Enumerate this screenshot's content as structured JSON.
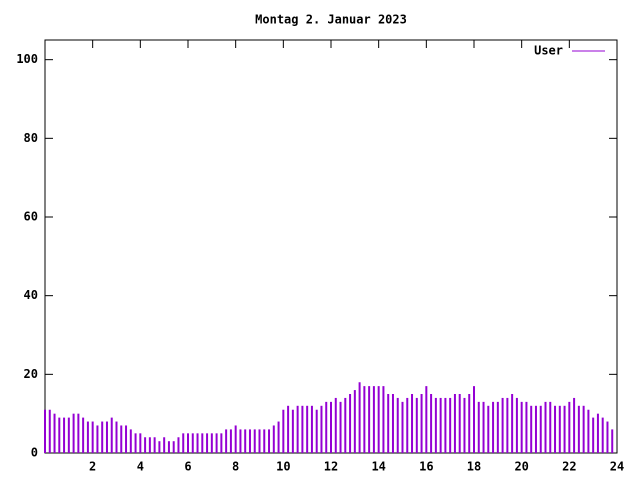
{
  "chart_data": {
    "type": "impulse",
    "title": "Montag 2. Januar 2023",
    "x": [
      0,
      0.2,
      0.4,
      0.6,
      0.8,
      1,
      1.2,
      1.4,
      1.6,
      1.8,
      2,
      2.2,
      2.4,
      2.6,
      2.8,
      3,
      3.2,
      3.4,
      3.6,
      3.8,
      4,
      4.2,
      4.4,
      4.6,
      4.8,
      5,
      5.2,
      5.4,
      5.6,
      5.8,
      6,
      6.2,
      6.4,
      6.6,
      6.8,
      7,
      7.2,
      7.4,
      7.6,
      7.8,
      8,
      8.2,
      8.4,
      8.6,
      8.8,
      9,
      9.2,
      9.4,
      9.6,
      9.8,
      10,
      10.2,
      10.4,
      10.6,
      10.8,
      11,
      11.2,
      11.4,
      11.6,
      11.8,
      12,
      12.2,
      12.4,
      12.6,
      12.8,
      13,
      13.2,
      13.4,
      13.6,
      13.8,
      14,
      14.2,
      14.4,
      14.6,
      14.8,
      15,
      15.2,
      15.4,
      15.6,
      15.8,
      16,
      16.2,
      16.4,
      16.6,
      16.8,
      17,
      17.2,
      17.4,
      17.6,
      17.8,
      18,
      18.2,
      18.4,
      18.6,
      18.8,
      19,
      19.2,
      19.4,
      19.6,
      19.8,
      20,
      20.2,
      20.4,
      20.6,
      20.8,
      21,
      21.2,
      21.4,
      21.6,
      21.8,
      22,
      22.2,
      22.4,
      22.6,
      22.8,
      23,
      23.2,
      23.4,
      23.6,
      23.8
    ],
    "series": [
      {
        "name": "User",
        "color": "#9400d3",
        "values": [
          11,
          11,
          10,
          9,
          9,
          9,
          10,
          10,
          9,
          8,
          8,
          7,
          8,
          8,
          9,
          8,
          7,
          7,
          6,
          5,
          5,
          4,
          4,
          4,
          3,
          4,
          3,
          3,
          4,
          5,
          5,
          5,
          5,
          5,
          5,
          5,
          5,
          5,
          6,
          6,
          7,
          6,
          6,
          6,
          6,
          6,
          6,
          6,
          7,
          8,
          11,
          12,
          11,
          12,
          12,
          12,
          12,
          11,
          12,
          13,
          13,
          14,
          13,
          14,
          15,
          16,
          18,
          17,
          17,
          17,
          17,
          17,
          15,
          15,
          14,
          13,
          14,
          15,
          14,
          15,
          17,
          15,
          14,
          14,
          14,
          14,
          15,
          15,
          14,
          15,
          17,
          13,
          13,
          12,
          13,
          13,
          14,
          14,
          15,
          14,
          13,
          13,
          12,
          12,
          12,
          13,
          13,
          12,
          12,
          12,
          13,
          14,
          12,
          12,
          11,
          9,
          10,
          9,
          8,
          6
        ]
      }
    ],
    "xlim": [
      0,
      24
    ],
    "xticks": [
      2,
      4,
      6,
      8,
      10,
      12,
      14,
      16,
      18,
      20,
      22,
      24
    ],
    "ylim": [
      0,
      105
    ],
    "yticks": [
      0,
      20,
      40,
      60,
      80,
      100
    ],
    "legend": "top-right"
  }
}
